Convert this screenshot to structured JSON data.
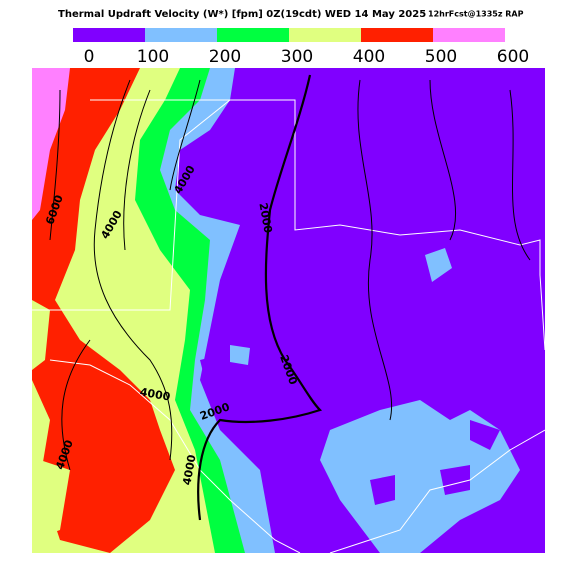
{
  "header": {
    "title": "Thermal Updraft Velocity (W*) [fpm] 0Z(19cdt) WED 14 May 2025",
    "subtitle": "12hrFcst@1335z RAP"
  },
  "legend": {
    "colors": [
      "#8000ff",
      "#80c0ff",
      "#00ff40",
      "#e0ff80",
      "#ff2000",
      "#ff80ff"
    ],
    "labels": [
      "0",
      "100",
      "200",
      "300",
      "400",
      "500",
      "600"
    ]
  },
  "contour_labels": [
    "6000",
    "4000",
    "4000",
    "2000",
    "2000",
    "2000",
    "4000",
    "4000",
    "4000"
  ]
}
